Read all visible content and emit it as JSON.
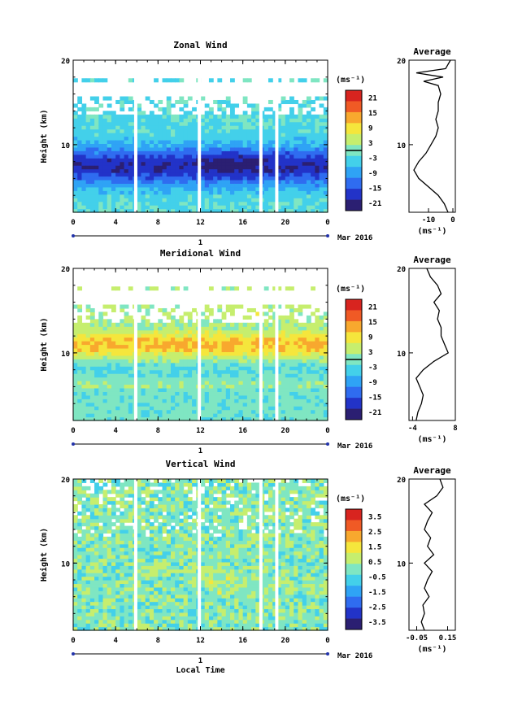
{
  "chart_data": [
    {
      "type": "heatmap",
      "title": "Zonal Wind",
      "xlabel": "",
      "ylabel": "Height (km)",
      "xlim": [
        0,
        24
      ],
      "ylim": [
        2,
        20
      ],
      "xticks": [
        "0",
        "4",
        "8",
        "12",
        "16",
        "20",
        "0"
      ],
      "yticks": [
        "10",
        "20"
      ],
      "date_label": "1",
      "month_label": "Mar 2016",
      "colorbar": {
        "unit": "(ms⁻¹)",
        "ticks": [
          "21",
          "15",
          "9",
          "3",
          "-3",
          "-9",
          "-15",
          "-21"
        ],
        "range": [
          -24,
          24
        ]
      },
      "gaps_hours": [
        5.9,
        11.9,
        17.7,
        19.2
      ],
      "profile": {
        "title": "Average",
        "unit": "(ms⁻¹)",
        "xticks": [
          "-10",
          "0"
        ],
        "xlim": [
          -18,
          1
        ],
        "heights": [
          2,
          3,
          4,
          5,
          6,
          7,
          8,
          9,
          10,
          11,
          12,
          13,
          14,
          15,
          16,
          17,
          17.5,
          18,
          18.5,
          19,
          20
        ],
        "values": [
          -2,
          -3.5,
          -6,
          -10,
          -14,
          -16,
          -14,
          -11,
          -9,
          -7,
          -6,
          -7,
          -6,
          -6,
          -5,
          -6,
          -12,
          -4,
          -15,
          -3,
          -1
        ]
      }
    },
    {
      "type": "heatmap",
      "title": "Meridional Wind",
      "xlabel": "",
      "ylabel": "Height (km)",
      "xlim": [
        0,
        24
      ],
      "ylim": [
        2,
        20
      ],
      "xticks": [
        "0",
        "4",
        "8",
        "12",
        "16",
        "20",
        "0"
      ],
      "yticks": [
        "10",
        "20"
      ],
      "date_label": "1",
      "month_label": "Mar 2016",
      "colorbar": {
        "unit": "(ms⁻¹)",
        "ticks": [
          "21",
          "15",
          "9",
          "3",
          "-3",
          "-9",
          "-15",
          "-21"
        ],
        "range": [
          -24,
          24
        ]
      },
      "gaps_hours": [
        5.9,
        11.9,
        17.7,
        19.2
      ],
      "profile": {
        "title": "Average",
        "unit": "(ms⁻¹)",
        "xticks": [
          "-4",
          "8"
        ],
        "xlim": [
          -5,
          8
        ],
        "heights": [
          2,
          3,
          4,
          5,
          6,
          7,
          8,
          9,
          10,
          11,
          12,
          13,
          14,
          15,
          16,
          17,
          18,
          19,
          20
        ],
        "values": [
          -3,
          -2.5,
          -1.5,
          -1,
          -2,
          -3,
          -1,
          2,
          6,
          5,
          4,
          4,
          3,
          3.5,
          2,
          4,
          3,
          1,
          0
        ]
      }
    },
    {
      "type": "heatmap",
      "title": "Vertical Wind",
      "xlabel": "Local Time",
      "ylabel": "Height (km)",
      "xlim": [
        0,
        24
      ],
      "ylim": [
        2,
        20
      ],
      "xticks": [
        "0",
        "4",
        "8",
        "12",
        "16",
        "20",
        "0"
      ],
      "yticks": [
        "10",
        "20"
      ],
      "date_label": "1",
      "month_label": "Mar 2016",
      "colorbar": {
        "unit": "(ms⁻¹)",
        "ticks": [
          "3.5",
          "2.5",
          "1.5",
          "0.5",
          "-0.5",
          "-1.5",
          "-2.5",
          "-3.5"
        ],
        "range": [
          -4,
          4
        ]
      },
      "gaps_hours": [
        5.9,
        11.9,
        17.7,
        19.2
      ],
      "profile": {
        "title": "Average",
        "unit": "(ms⁻¹)",
        "xticks": [
          "-0.05",
          "0.15"
        ],
        "xlim": [
          -0.1,
          0.2
        ],
        "heights": [
          2,
          3,
          4,
          5,
          6,
          7,
          8,
          9,
          10,
          11,
          12,
          13,
          14,
          15,
          16,
          17,
          18,
          19,
          20
        ],
        "values": [
          0.0,
          -0.02,
          0.0,
          -0.01,
          0.03,
          0.0,
          0.02,
          0.05,
          0.0,
          0.06,
          0.02,
          0.04,
          0.0,
          0.02,
          0.05,
          0.0,
          0.08,
          0.12,
          0.1
        ]
      }
    }
  ],
  "colors": {
    "scale": [
      "#2b1f72",
      "#2233c8",
      "#2f6cf0",
      "#2fa3f5",
      "#43d0ea",
      "#7fe6c2",
      "#c6ee6e",
      "#f5e63c",
      "#f8a82e",
      "#f05a25",
      "#d8241f"
    ]
  }
}
